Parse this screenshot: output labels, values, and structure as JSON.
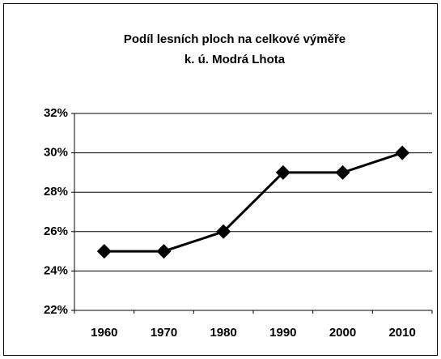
{
  "chart_data": {
    "type": "line",
    "title": [
      "Podíl lesních ploch na celkové výměře",
      "k. ú. Modrá Lhota"
    ],
    "categories": [
      "1960",
      "1970",
      "1980",
      "1990",
      "2000",
      "2010"
    ],
    "values": [
      25,
      25,
      26,
      29,
      29,
      30
    ],
    "color": "#000000",
    "ylim": [
      22,
      32
    ],
    "yticks": [
      {
        "value": 22,
        "label": "22%"
      },
      {
        "value": 24,
        "label": "24%"
      },
      {
        "value": 26,
        "label": "26%"
      },
      {
        "value": 28,
        "label": "28%"
      },
      {
        "value": 30,
        "label": "30%"
      },
      {
        "value": 32,
        "label": "32%"
      }
    ],
    "grid": true
  }
}
